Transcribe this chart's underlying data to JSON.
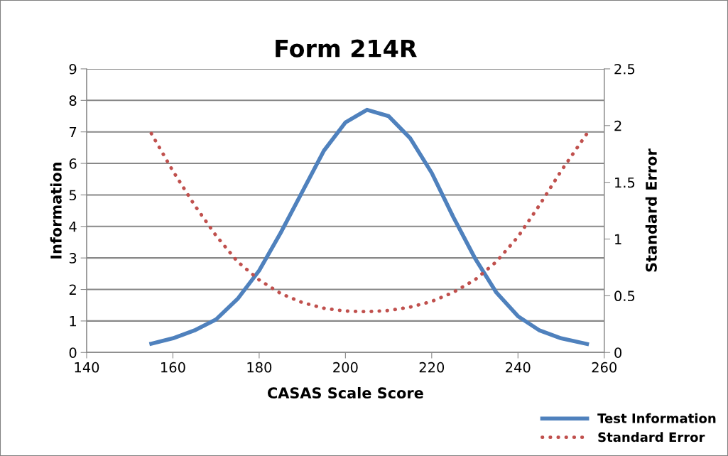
{
  "chart_data": {
    "type": "line",
    "title": "Form 214R",
    "xlabel": "CASAS Scale Score",
    "ylabel": "Information",
    "y2label": "Standard Error",
    "x": [
      155,
      160,
      165,
      170,
      175,
      180,
      185,
      190,
      195,
      200,
      205,
      210,
      215,
      220,
      225,
      230,
      235,
      240,
      245,
      250,
      256
    ],
    "series": [
      {
        "name": "Test Information",
        "color": "#4f81bd",
        "line_style": "solid",
        "values": [
          0.28,
          0.45,
          0.7,
          1.05,
          1.7,
          2.6,
          3.8,
          5.1,
          6.4,
          7.3,
          7.7,
          7.5,
          6.8,
          5.7,
          4.3,
          3.0,
          1.9,
          1.15,
          0.7,
          0.45,
          0.27
        ]
      },
      {
        "name": "Standard Error",
        "color": "#c0504d",
        "line_style": "dotted",
        "axis": "y2",
        "values": [
          1.93,
          1.6,
          1.3,
          1.03,
          0.8,
          0.64,
          0.52,
          0.44,
          0.39,
          0.365,
          0.36,
          0.37,
          0.4,
          0.45,
          0.53,
          0.64,
          0.8,
          1.02,
          1.3,
          1.6,
          1.93
        ]
      }
    ],
    "xlim": [
      140,
      260
    ],
    "xticks": [
      140,
      160,
      180,
      200,
      220,
      240,
      260
    ],
    "ylim": [
      0,
      9
    ],
    "yticks": [
      0,
      1,
      2,
      3,
      4,
      5,
      6,
      7,
      8,
      9
    ],
    "y2lim": [
      0,
      2.5
    ],
    "y2ticks": [
      0,
      0.5,
      1,
      1.5,
      2,
      2.5
    ],
    "grid": "y",
    "legend": "bottom right",
    "marker": "none"
  }
}
